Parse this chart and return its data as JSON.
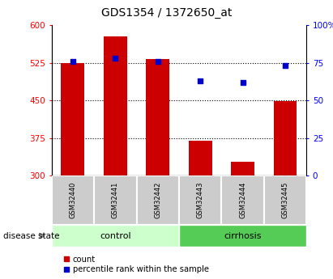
{
  "title": "GDS1354 / 1372650_at",
  "samples": [
    "GSM32440",
    "GSM32441",
    "GSM32442",
    "GSM32443",
    "GSM32444",
    "GSM32445"
  ],
  "groups": [
    "control",
    "control",
    "control",
    "cirrhosis",
    "cirrhosis",
    "cirrhosis"
  ],
  "bar_values": [
    525,
    578,
    533,
    370,
    328,
    448
  ],
  "scatter_values": [
    76,
    78,
    76,
    63,
    62,
    73
  ],
  "bar_bottom": 300,
  "left_ylim": [
    300,
    600
  ],
  "right_ylim": [
    0,
    100
  ],
  "left_yticks": [
    300,
    375,
    450,
    525,
    600
  ],
  "right_yticks": [
    0,
    25,
    50,
    75,
    100
  ],
  "right_yticklabels": [
    "0",
    "25",
    "50",
    "75",
    "100%"
  ],
  "bar_color": "#cc0000",
  "scatter_color": "#0000cc",
  "hline_values": [
    375,
    450,
    525
  ],
  "control_color": "#ccffcc",
  "cirrhosis_color": "#55cc55",
  "sample_box_color": "#cccccc",
  "legend_count_label": "count",
  "legend_pct_label": "percentile rank within the sample",
  "disease_state_label": "disease state"
}
